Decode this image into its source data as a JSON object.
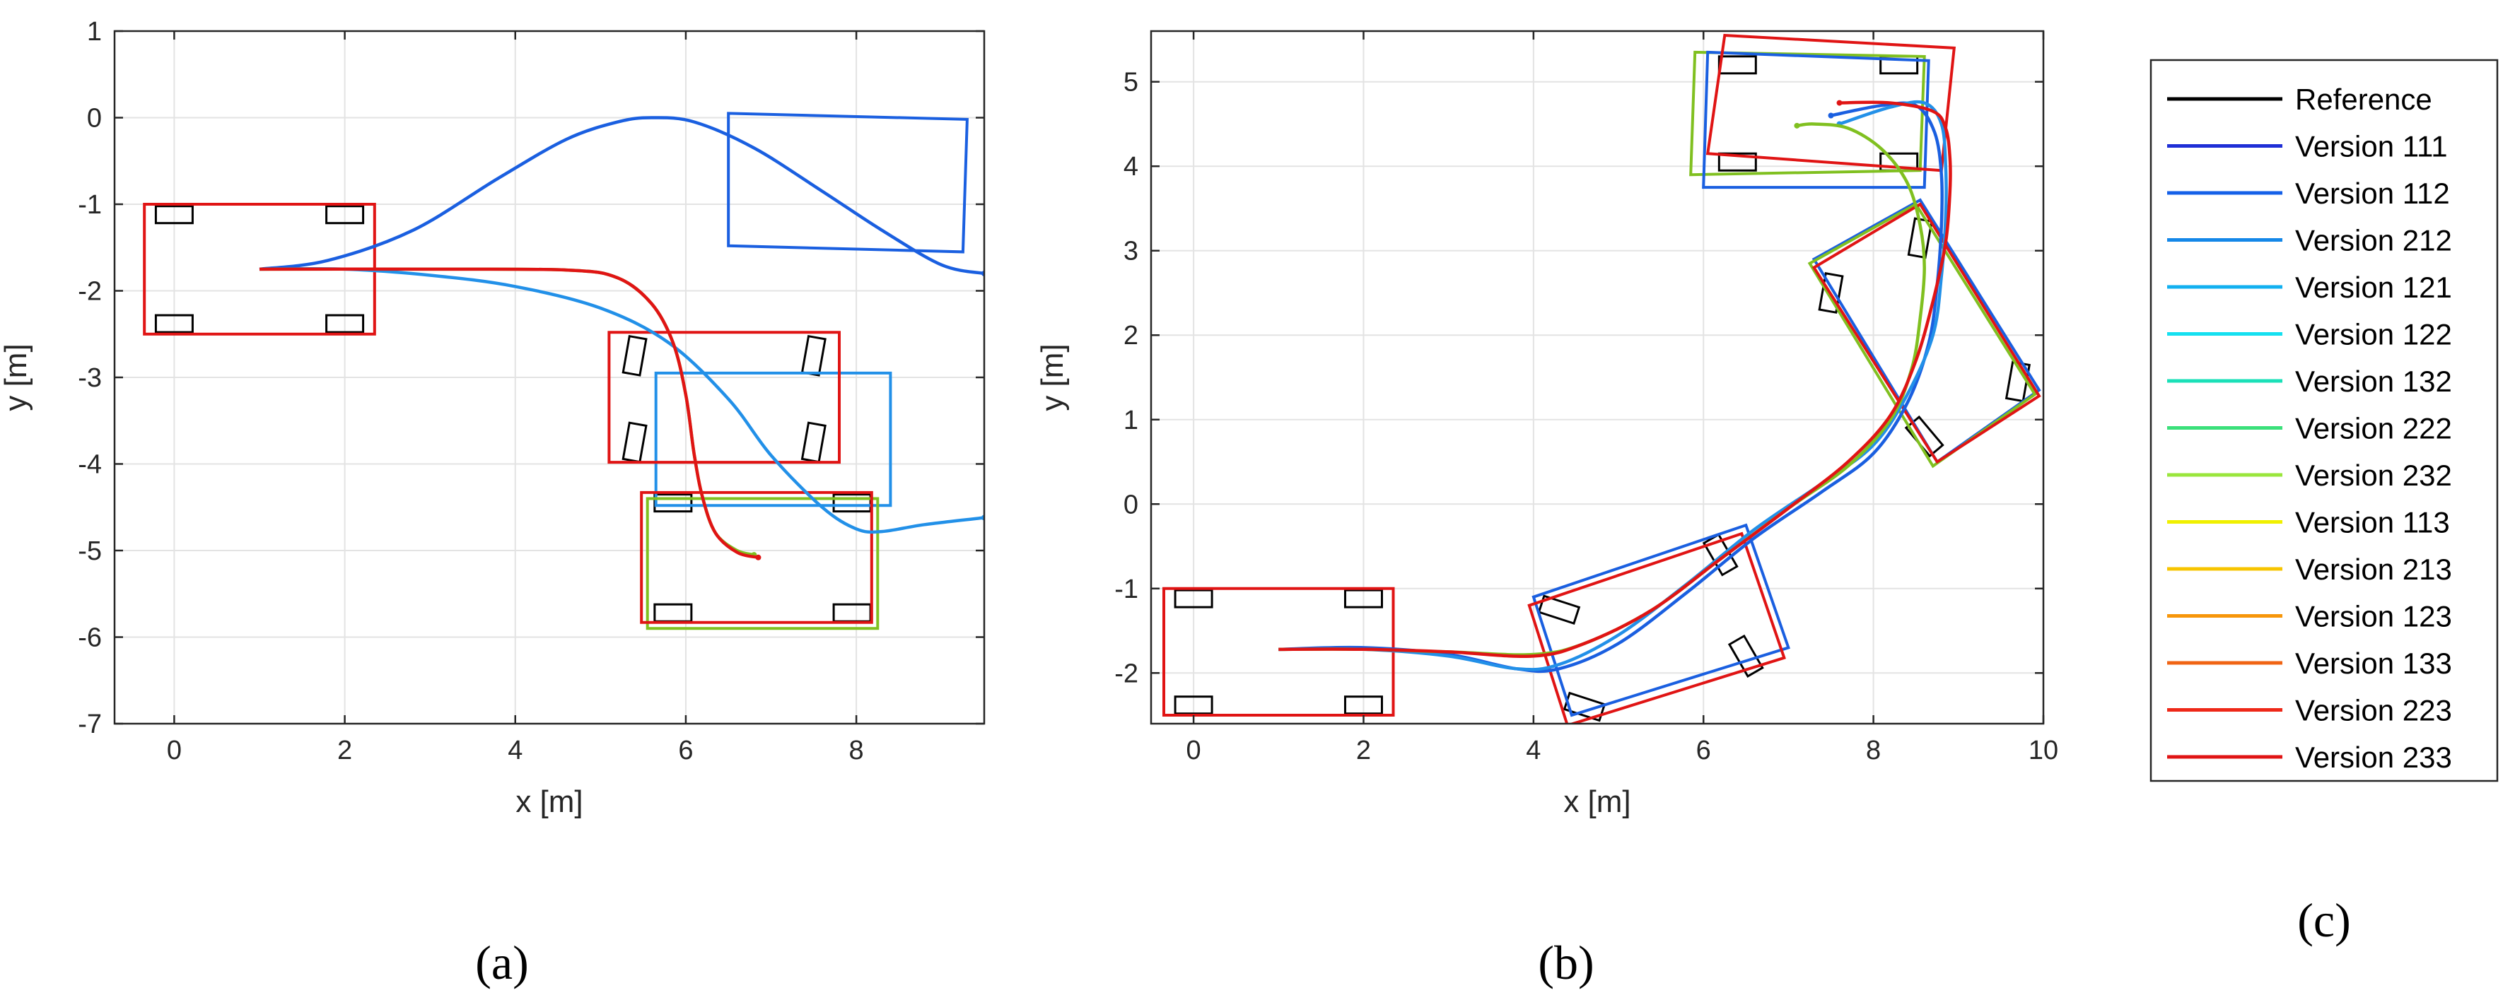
{
  "panel_labels": {
    "a": "(a)",
    "b": "(b)",
    "c": "(c)"
  },
  "legend": {
    "entries": [
      {
        "label": "Reference",
        "color": "#000000"
      },
      {
        "label": "Version 111",
        "color": "#1f2fd6"
      },
      {
        "label": "Version 112",
        "color": "#1560e8"
      },
      {
        "label": "Version 212",
        "color": "#1487e8"
      },
      {
        "label": "Version 121",
        "color": "#12b0f0"
      },
      {
        "label": "Version 122",
        "color": "#14e0f0"
      },
      {
        "label": "Version 132",
        "color": "#1ae0b8"
      },
      {
        "label": "Version 222",
        "color": "#3be07a"
      },
      {
        "label": "Version 232",
        "color": "#9ae63c"
      },
      {
        "label": "Version 113",
        "color": "#f0f000"
      },
      {
        "label": "Version 213",
        "color": "#f7c400"
      },
      {
        "label": "Version 123",
        "color": "#f7960a"
      },
      {
        "label": "Version 133",
        "color": "#f06414"
      },
      {
        "label": "Version 223",
        "color": "#ee2818"
      },
      {
        "label": "Version 233",
        "color": "#e01414"
      }
    ]
  },
  "chart_data": [
    {
      "id": "a",
      "type": "line",
      "xlabel": "x [m]",
      "ylabel": "y [m]",
      "xlim": [
        -0.7,
        9.5
      ],
      "ylim": [
        -7,
        1
      ],
      "xticks": [
        0,
        2,
        4,
        6,
        8
      ],
      "yticks": [
        1,
        0,
        -1,
        -2,
        -3,
        -4,
        -5,
        -6,
        -7
      ],
      "grid": true,
      "vehicle_outlines": [
        {
          "color": "#e01414",
          "corners": [
            [
              -0.35,
              -1.0
            ],
            [
              2.35,
              -1.0
            ],
            [
              2.35,
              -2.5
            ],
            [
              -0.35,
              -2.5
            ]
          ]
        },
        {
          "color": "#1a5fe0",
          "corners": [
            [
              6.5,
              0.05
            ],
            [
              9.3,
              -0.02
            ],
            [
              9.25,
              -1.55
            ],
            [
              6.5,
              -1.48
            ]
          ]
        },
        {
          "color": "#2290e8",
          "corners": [
            [
              5.65,
              -2.95
            ],
            [
              8.4,
              -2.95
            ],
            [
              8.4,
              -4.48
            ],
            [
              5.65,
              -4.48
            ]
          ]
        },
        {
          "color": "#e01414",
          "corners": [
            [
              5.1,
              -2.48
            ],
            [
              7.8,
              -2.48
            ],
            [
              7.8,
              -3.98
            ],
            [
              5.1,
              -3.98
            ]
          ]
        },
        {
          "color": "#80c020",
          "corners": [
            [
              5.55,
              -4.4
            ],
            [
              8.25,
              -4.4
            ],
            [
              8.25,
              -5.9
            ],
            [
              5.55,
              -5.9
            ]
          ]
        },
        {
          "color": "#e01414",
          "corners": [
            [
              5.48,
              -4.33
            ],
            [
              8.18,
              -4.33
            ],
            [
              8.18,
              -5.83
            ],
            [
              5.48,
              -5.83
            ]
          ]
        }
      ],
      "wheels": [
        {
          "c": [
            0.0,
            -1.12
          ],
          "a": 0
        },
        {
          "c": [
            2.0,
            -1.12
          ],
          "a": 0
        },
        {
          "c": [
            0.0,
            -2.38
          ],
          "a": 0
        },
        {
          "c": [
            2.0,
            -2.38
          ],
          "a": 0
        },
        {
          "c": [
            5.4,
            -2.75
          ],
          "a": 80
        },
        {
          "c": [
            7.5,
            -2.75
          ],
          "a": 80
        },
        {
          "c": [
            5.4,
            -3.75
          ],
          "a": 80
        },
        {
          "c": [
            7.5,
            -3.75
          ],
          "a": 80
        },
        {
          "c": [
            5.85,
            -4.45
          ],
          "a": 0
        },
        {
          "c": [
            7.95,
            -4.45
          ],
          "a": 0
        },
        {
          "c": [
            5.85,
            -5.72
          ],
          "a": 0
        },
        {
          "c": [
            7.95,
            -5.72
          ],
          "a": 0
        }
      ],
      "series": [
        {
          "name": "Version 112",
          "color": "#1a5fe0",
          "jitter": true,
          "x": [
            1.0,
            1.8,
            2.8,
            3.8,
            4.6,
            5.2,
            5.6,
            6.1,
            6.8,
            7.6,
            8.3,
            9.0,
            9.5
          ],
          "y": [
            -1.75,
            -1.65,
            -1.3,
            -0.7,
            -0.25,
            -0.05,
            0.0,
            -0.05,
            -0.35,
            -0.85,
            -1.3,
            -1.7,
            -1.8
          ]
        },
        {
          "name": "Version 121",
          "color": "#2290e8",
          "jitter": true,
          "x": [
            1.0,
            2.0,
            3.0,
            4.0,
            5.0,
            5.8,
            6.5,
            7.0,
            7.6,
            8.0,
            8.3,
            8.8,
            9.5
          ],
          "y": [
            -1.75,
            -1.75,
            -1.82,
            -1.95,
            -2.2,
            -2.6,
            -3.25,
            -3.9,
            -4.5,
            -4.75,
            -4.78,
            -4.7,
            -4.62
          ]
        },
        {
          "name": "Version 232",
          "color": "#80c020",
          "jitter": false,
          "x": [
            1.0,
            3.0,
            4.6,
            5.2,
            5.6,
            5.85,
            6.0,
            6.1,
            6.2,
            6.35,
            6.6,
            6.8
          ],
          "y": [
            -1.75,
            -1.75,
            -1.76,
            -1.85,
            -2.15,
            -2.6,
            -3.2,
            -3.9,
            -4.4,
            -4.8,
            -5.0,
            -5.05
          ]
        },
        {
          "name": "Version 233",
          "color": "#e01414",
          "jitter": false,
          "x": [
            1.0,
            3.0,
            4.6,
            5.2,
            5.6,
            5.85,
            6.0,
            6.1,
            6.2,
            6.35,
            6.6,
            6.85
          ],
          "y": [
            -1.75,
            -1.75,
            -1.76,
            -1.85,
            -2.15,
            -2.6,
            -3.2,
            -3.9,
            -4.4,
            -4.8,
            -5.02,
            -5.08
          ]
        }
      ]
    },
    {
      "id": "b",
      "type": "line",
      "xlabel": "x [m]",
      "ylabel": "y [m]",
      "xlim": [
        -0.5,
        10
      ],
      "ylim": [
        -2.6,
        5.6
      ],
      "xticks": [
        0,
        2,
        4,
        6,
        8,
        10
      ],
      "yticks": [
        5,
        4,
        3,
        2,
        1,
        0,
        -1,
        -2
      ],
      "grid": true,
      "vehicle_outlines": [
        {
          "color": "#e01414",
          "corners": [
            [
              -0.35,
              -1.0
            ],
            [
              2.35,
              -1.0
            ],
            [
              2.35,
              -2.5
            ],
            [
              -0.35,
              -2.5
            ]
          ]
        },
        {
          "color": "#1a5fe0",
          "corners": [
            [
              4.0,
              -1.1
            ],
            [
              6.5,
              -0.25
            ],
            [
              7.0,
              -1.7
            ],
            [
              4.45,
              -2.5
            ]
          ]
        },
        {
          "color": "#e01414",
          "corners": [
            [
              3.95,
              -1.2
            ],
            [
              6.45,
              -0.35
            ],
            [
              6.95,
              -1.82
            ],
            [
              4.4,
              -2.62
            ]
          ]
        },
        {
          "color": "#1a5fe0",
          "corners": [
            [
              7.3,
              2.9
            ],
            [
              8.55,
              3.6
            ],
            [
              9.95,
              1.35
            ],
            [
              8.75,
              0.5
            ]
          ]
        },
        {
          "color": "#80c020",
          "corners": [
            [
              7.25,
              2.85
            ],
            [
              8.5,
              3.55
            ],
            [
              9.9,
              1.3
            ],
            [
              8.7,
              0.45
            ]
          ]
        },
        {
          "color": "#e01414",
          "corners": [
            [
              7.3,
              2.8
            ],
            [
              8.55,
              3.55
            ],
            [
              9.95,
              1.28
            ],
            [
              8.75,
              0.5
            ]
          ]
        },
        {
          "color": "#80c020",
          "corners": [
            [
              5.9,
              5.35
            ],
            [
              8.6,
              5.3
            ],
            [
              8.55,
              3.95
            ],
            [
              5.85,
              3.9
            ]
          ]
        },
        {
          "color": "#1a5fe0",
          "corners": [
            [
              6.05,
              5.35
            ],
            [
              8.65,
              5.25
            ],
            [
              8.6,
              3.75
            ],
            [
              6.0,
              3.75
            ]
          ]
        },
        {
          "color": "#e01414",
          "corners": [
            [
              6.25,
              5.55
            ],
            [
              8.95,
              5.4
            ],
            [
              8.8,
              3.95
            ],
            [
              6.05,
              4.15
            ]
          ]
        }
      ],
      "wheels": [
        {
          "c": [
            0.0,
            -1.12
          ],
          "a": 0
        },
        {
          "c": [
            2.0,
            -1.12
          ],
          "a": 0
        },
        {
          "c": [
            0.0,
            -2.38
          ],
          "a": 0
        },
        {
          "c": [
            2.0,
            -2.38
          ],
          "a": 0
        },
        {
          "c": [
            4.3,
            -1.25
          ],
          "a": -18
        },
        {
          "c": [
            6.2,
            -0.6
          ],
          "a": -60
        },
        {
          "c": [
            4.6,
            -2.4
          ],
          "a": -18
        },
        {
          "c": [
            6.5,
            -1.8
          ],
          "a": -60
        },
        {
          "c": [
            7.5,
            2.5
          ],
          "a": 80
        },
        {
          "c": [
            8.55,
            3.15
          ],
          "a": 80
        },
        {
          "c": [
            8.6,
            0.8
          ],
          "a": -50
        },
        {
          "c": [
            9.7,
            1.45
          ],
          "a": 80
        },
        {
          "c": [
            6.4,
            5.2
          ],
          "a": 0
        },
        {
          "c": [
            8.3,
            5.2
          ],
          "a": 0
        },
        {
          "c": [
            6.4,
            4.05
          ],
          "a": 0
        },
        {
          "c": [
            8.3,
            4.05
          ],
          "a": 0
        }
      ],
      "series": [
        {
          "name": "Version 112",
          "color": "#1a5fe0",
          "jitter": false,
          "x": [
            1.0,
            2.0,
            3.0,
            3.8,
            4.3,
            5.0,
            5.8,
            6.6,
            7.4,
            8.0,
            8.4,
            8.65,
            8.75,
            8.8,
            8.8,
            8.72,
            8.5,
            8.1,
            7.5
          ],
          "y": [
            -1.72,
            -1.7,
            -1.78,
            -1.95,
            -1.95,
            -1.65,
            -1.05,
            -0.4,
            0.15,
            0.6,
            1.2,
            1.9,
            2.6,
            3.3,
            3.9,
            4.4,
            4.72,
            4.72,
            4.6
          ]
        },
        {
          "name": "Version 121",
          "color": "#2290e8",
          "jitter": false,
          "x": [
            1.0,
            2.0,
            3.0,
            3.8,
            4.3,
            5.0,
            5.8,
            6.6,
            7.4,
            8.0,
            8.4,
            8.7,
            8.8,
            8.85,
            8.85,
            8.8,
            8.6,
            8.2,
            7.6
          ],
          "y": [
            -1.72,
            -1.72,
            -1.8,
            -1.95,
            -1.9,
            -1.55,
            -0.95,
            -0.3,
            0.25,
            0.7,
            1.3,
            2.0,
            2.7,
            3.4,
            4.0,
            4.5,
            4.75,
            4.7,
            4.5
          ]
        },
        {
          "name": "Version 232",
          "color": "#80c020",
          "jitter": false,
          "x": [
            1.0,
            2.0,
            3.0,
            4.0,
            4.6,
            5.4,
            6.2,
            7.0,
            7.7,
            8.2,
            8.45,
            8.55,
            8.6,
            8.55,
            8.4,
            8.1,
            7.7,
            7.3,
            7.1
          ],
          "y": [
            -1.72,
            -1.72,
            -1.75,
            -1.78,
            -1.65,
            -1.25,
            -0.65,
            -0.05,
            0.45,
            1.0,
            1.6,
            2.2,
            2.8,
            3.3,
            3.8,
            4.2,
            4.45,
            4.5,
            4.48
          ]
        },
        {
          "name": "Version 233",
          "color": "#e01414",
          "jitter": false,
          "x": [
            1.0,
            2.0,
            3.0,
            4.0,
            4.6,
            5.4,
            6.2,
            7.0,
            7.7,
            8.2,
            8.5,
            8.7,
            8.85,
            8.9,
            8.9,
            8.85,
            8.7,
            8.2,
            7.6
          ],
          "y": [
            -1.72,
            -1.72,
            -1.75,
            -1.8,
            -1.65,
            -1.25,
            -0.65,
            -0.05,
            0.5,
            1.05,
            1.7,
            2.4,
            3.1,
            3.7,
            4.1,
            4.45,
            4.65,
            4.75,
            4.75
          ]
        }
      ]
    }
  ]
}
